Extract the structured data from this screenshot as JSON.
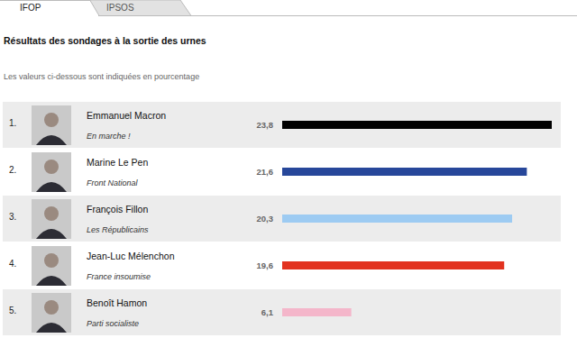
{
  "page": {
    "tabs": [
      "IFOP",
      "IPSOS"
    ]
  },
  "chart_data": {
    "type": "bar",
    "orientation": "horizontal",
    "title": "Résultats des sondages à la sortie des urnes",
    "subtitle": "Les valeurs ci-dessous sont indiquées en pourcentage",
    "ranks": [
      "1.",
      "2.",
      "3.",
      "4.",
      "5."
    ],
    "categories": [
      "Emmanuel Macron",
      "Marine Le Pen",
      "François Fillon",
      "Jean-Luc Mélenchon",
      "Benoît Hamon"
    ],
    "parties": [
      "En marche !",
      "Front National",
      "Les Républicains",
      "France insoumise",
      "Parti socialiste"
    ],
    "values": [
      23.8,
      21.6,
      20.3,
      19.6,
      6.1
    ],
    "value_labels": [
      "23,8",
      "21,6",
      "20,3",
      "19,6",
      "6,1"
    ],
    "colors": [
      "#000000",
      "#27479a",
      "#9dcbf2",
      "#e2321f",
      "#f4b6ca"
    ],
    "xlim": [
      0,
      23.8
    ],
    "data_labels": true,
    "tick_labels": false,
    "grid": false
  }
}
